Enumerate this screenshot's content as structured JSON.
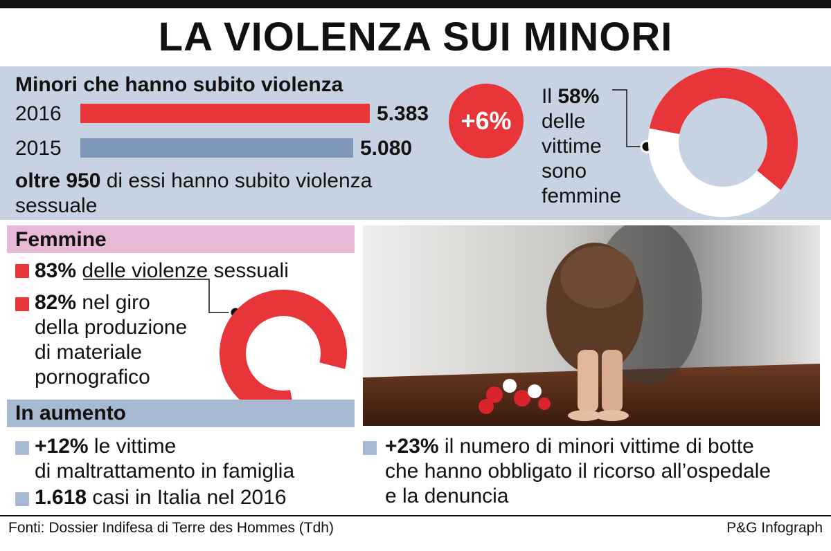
{
  "title": "LA VIOLENZA SUI MINORI",
  "colors": {
    "red": "#e8353a",
    "blue": "#7f98b9",
    "panel": "#c7d3e2",
    "pink": "#e7b9d6",
    "square_blue": "#a7b9d1"
  },
  "section1": {
    "heading": "Minori che hanno subito violenza",
    "bars": [
      {
        "year": "2016",
        "value_label": "5.383"
      },
      {
        "year": "2015",
        "value_label": "5.080"
      }
    ],
    "change_badge": "+6%",
    "sexual_bold": "oltre 950",
    "sexual_rest": " di essi hanno subito violenza",
    "sexual_line2": "sessuale"
  },
  "female_share": {
    "line1_pre": "Il ",
    "line1_bold": "58%",
    "line2": "delle",
    "line3": "vittime",
    "line4": "sono",
    "line5": "femmine"
  },
  "femmine": {
    "heading": "Femmine",
    "item1_bold": "83%",
    "item1_rest": " delle violenze sessuali",
    "item2_bold": "82%",
    "item2_rest": " nel giro",
    "item2_line2": "della produzione",
    "item2_line3": "di materiale",
    "item2_line4": "pornografico"
  },
  "in_aumento": {
    "heading": "In aumento",
    "a_bold": "+12%",
    "a_rest": " le vittime",
    "a_line2": "di maltrattamento in famiglia",
    "b_bold": "1.618",
    "b_rest": " casi in Italia nel 2016",
    "c_bold": "+23%",
    "c_rest": " il numero di minori vittime di botte",
    "c_line2": "che hanno obbligato il ricorso all’ospedale",
    "c_line3": "e la denuncia"
  },
  "footer": {
    "sources": "Fonti: Dossier Indifesa di Terre des Hommes (Tdh)",
    "credit": "P&G Infograph"
  },
  "chart_data": [
    {
      "type": "bar",
      "categories": [
        "2016",
        "2015"
      ],
      "values": [
        5383,
        5080
      ],
      "title": "Minori che hanno subito violenza"
    },
    {
      "type": "pie",
      "categories": [
        "femmine",
        "altro"
      ],
      "values": [
        58,
        42
      ]
    },
    {
      "type": "pie",
      "categories": [
        "82%",
        "altro"
      ],
      "values": [
        82,
        18
      ]
    }
  ]
}
